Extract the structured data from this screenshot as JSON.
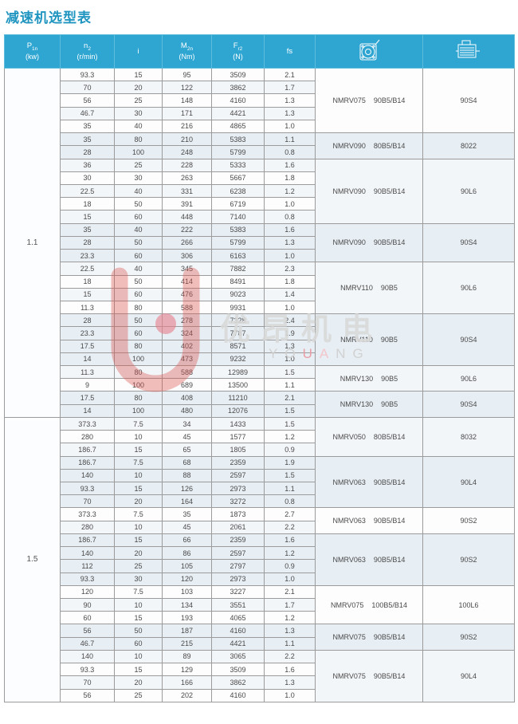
{
  "title": "减速机选型表",
  "colors": {
    "header_bg": "#2fa6d2",
    "accent": "#2095c0",
    "group_shade": "#e7eef4",
    "border": "#9b9b9b",
    "watermark_red": "#d9534f"
  },
  "header": {
    "cols": [
      {
        "sym": "P",
        "sub": "1n",
        "unit": "(kw)"
      },
      {
        "sym": "n",
        "sub": "2",
        "unit": "(r/min)"
      },
      {
        "sym": "i",
        "sub": "",
        "unit": ""
      },
      {
        "sym": "M",
        "sub": "2n",
        "unit": "(Nm)"
      },
      {
        "sym": "F",
        "sub": "r2",
        "unit": "(N)"
      },
      {
        "sym": "fs",
        "sub": "",
        "unit": ""
      }
    ],
    "gearbox_icon": "worm-gearbox-front-view",
    "motor_icon": "motor-side-view"
  },
  "watermark": {
    "cjk": "优昂机电",
    "latin": "YOUANG"
  },
  "sections": [
    {
      "power": "1.1",
      "groups": [
        {
          "gearbox": "NMRV075",
          "flange": "90B5/B14",
          "motor": "90S4",
          "rows": [
            [
              "93.3",
              "15",
              "95",
              "3509",
              "2.1"
            ],
            [
              "70",
              "20",
              "122",
              "3862",
              "1.7"
            ],
            [
              "56",
              "25",
              "148",
              "4160",
              "1.3"
            ],
            [
              "46.7",
              "30",
              "171",
              "4421",
              "1.3"
            ],
            [
              "35",
              "40",
              "216",
              "4865",
              "1.0"
            ]
          ]
        },
        {
          "gearbox": "NMRV090",
          "flange": "80B5/B14",
          "motor": "8022",
          "rows": [
            [
              "35",
              "80",
              "210",
              "5383",
              "1.1"
            ],
            [
              "28",
              "100",
              "248",
              "5799",
              "0.8"
            ]
          ]
        },
        {
          "gearbox": "NMRV090",
          "flange": "90B5/B14",
          "motor": "90L6",
          "rows": [
            [
              "36",
              "25",
              "228",
              "5333",
              "1.6"
            ],
            [
              "30",
              "30",
              "263",
              "5667",
              "1.8"
            ],
            [
              "22.5",
              "40",
              "331",
              "6238",
              "1.2"
            ],
            [
              "18",
              "50",
              "391",
              "6719",
              "1.0"
            ],
            [
              "15",
              "60",
              "448",
              "7140",
              "0.8"
            ]
          ]
        },
        {
          "gearbox": "NMRV090",
          "flange": "90B5/B14",
          "motor": "90S4",
          "rows": [
            [
              "35",
              "40",
              "222",
              "5383",
              "1.6"
            ],
            [
              "28",
              "50",
              "266",
              "5799",
              "1.3"
            ],
            [
              "23.3",
              "60",
              "306",
              "6163",
              "1.0"
            ]
          ]
        },
        {
          "gearbox": "NMRV110",
          "flange": "90B5",
          "motor": "90L6",
          "rows": [
            [
              "22.5",
              "40",
              "345",
              "7882",
              "2.3"
            ],
            [
              "18",
              "50",
              "414",
              "8491",
              "1.8"
            ],
            [
              "15",
              "60",
              "476",
              "9023",
              "1.4"
            ],
            [
              "11.3",
              "80",
              "588",
              "9931",
              "1.0"
            ]
          ]
        },
        {
          "gearbox": "NMRV110",
          "flange": "90B5",
          "motor": "90S4",
          "rows": [
            [
              "28",
              "50",
              "278",
              "7328",
              "2.4"
            ],
            [
              "23.3",
              "60",
              "324",
              "7787",
              "1.9"
            ],
            [
              "17.5",
              "80",
              "402",
              "8571",
              "1.3"
            ],
            [
              "14",
              "100",
              "473",
              "9232",
              "1.0"
            ]
          ]
        },
        {
          "gearbox": "NMRV130",
          "flange": "90B5",
          "motor": "90L6",
          "rows": [
            [
              "11.3",
              "80",
              "588",
              "12989",
              "1.5"
            ],
            [
              "9",
              "100",
              "689",
              "13500",
              "1.1"
            ]
          ]
        },
        {
          "gearbox": "NMRV130",
          "flange": "90B5",
          "motor": "90S4",
          "rows": [
            [
              "17.5",
              "80",
              "408",
              "11210",
              "2.1"
            ],
            [
              "14",
              "100",
              "480",
              "12076",
              "1.5"
            ]
          ]
        }
      ]
    },
    {
      "power": "1.5",
      "groups": [
        {
          "gearbox": "NMRV050",
          "flange": "80B5/B14",
          "motor": "8032",
          "rows": [
            [
              "373.3",
              "7.5",
              "34",
              "1433",
              "1.5"
            ],
            [
              "280",
              "10",
              "45",
              "1577",
              "1.2"
            ],
            [
              "186.7",
              "15",
              "65",
              "1805",
              "0.9"
            ]
          ]
        },
        {
          "gearbox": "NMRV063",
          "flange": "90B5/B14",
          "motor": "90L4",
          "rows": [
            [
              "186.7",
              "7.5",
              "68",
              "2359",
              "1.9"
            ],
            [
              "140",
              "10",
              "88",
              "2597",
              "1.5"
            ],
            [
              "93.3",
              "15",
              "126",
              "2973",
              "1.1"
            ],
            [
              "70",
              "20",
              "164",
              "3272",
              "0.8"
            ]
          ]
        },
        {
          "gearbox": "NMRV063",
          "flange": "90B5/B14",
          "motor": "90S2",
          "rows": [
            [
              "373.3",
              "7.5",
              "35",
              "1873",
              "2.7"
            ],
            [
              "280",
              "10",
              "45",
              "2061",
              "2.2"
            ]
          ]
        },
        {
          "gearbox": "NMRV063",
          "flange": "90B5/B14",
          "motor": "90S2",
          "rows": [
            [
              "186.7",
              "15",
              "66",
              "2359",
              "1.6"
            ],
            [
              "140",
              "20",
              "86",
              "2597",
              "1.2"
            ],
            [
              "112",
              "25",
              "105",
              "2797",
              "0.9"
            ],
            [
              "93.3",
              "30",
              "120",
              "2973",
              "1.0"
            ]
          ]
        },
        {
          "gearbox": "NMRV075",
          "flange": "100B5/B14",
          "motor": "100L6",
          "rows": [
            [
              "120",
              "7.5",
              "103",
              "3227",
              "2.1"
            ],
            [
              "90",
              "10",
              "134",
              "3551",
              "1.7"
            ],
            [
              "60",
              "15",
              "193",
              "4065",
              "1.2"
            ]
          ]
        },
        {
          "gearbox": "NMRV075",
          "flange": "90B5/B14",
          "motor": "90S2",
          "rows": [
            [
              "56",
              "50",
              "187",
              "4160",
              "1.3"
            ],
            [
              "46.7",
              "60",
              "215",
              "4421",
              "1.1"
            ]
          ]
        },
        {
          "gearbox": "NMRV075",
          "flange": "90B5/B14",
          "motor": "90L4",
          "rows": [
            [
              "140",
              "10",
              "89",
              "3065",
              "2.2"
            ],
            [
              "93.3",
              "15",
              "129",
              "3509",
              "1.6"
            ],
            [
              "70",
              "20",
              "166",
              "3862",
              "1.3"
            ],
            [
              "56",
              "25",
              "202",
              "4160",
              "1.0"
            ]
          ]
        }
      ]
    }
  ]
}
